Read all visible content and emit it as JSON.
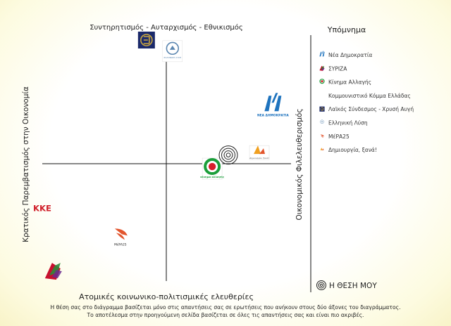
{
  "chart_data": {
    "type": "scatter",
    "title": "",
    "axes": {
      "top_label": "Συντηρητισμός - Αυταρχισμός - Εθνικισμός",
      "bottom_label": "Ατομικές κοινωνικο-πολιτισμικές ελευθερίες",
      "left_label": "Κρατικός Παρεμβατισμός στην Οικονομία",
      "right_label": "Οικονομικός Φιλελευθερισμός"
    },
    "xlim": [
      -1,
      1
    ],
    "ylim": [
      -1,
      1
    ],
    "grid": false,
    "legend_position": "right",
    "legend_title": "Υπόμνημα",
    "points": [
      {
        "name": "Νέα Δημοκρατία",
        "x": 0.86,
        "y": 0.47,
        "logo": "nd",
        "logo_text": "ΝΕΑ ΔΗΜΟΚΡΑΤΙΑ"
      },
      {
        "name": "ΣΥΡΙΖΑ",
        "x": -0.91,
        "y": -0.87,
        "logo": "syriza",
        "logo_text": ""
      },
      {
        "name": "Κίνημα Αλλαγής",
        "x": 0.37,
        "y": -0.04,
        "logo": "kinal",
        "logo_text": "κίνημα αλλαγής"
      },
      {
        "name": "Κομμουνιστικό Κόμμα Ελλάδας",
        "x": -1.0,
        "y": -0.36,
        "logo": "kke",
        "logo_text": "ΚΚΕ"
      },
      {
        "name": "Λαϊκός Σύνδεσμος - Χρυσή Αυγή",
        "x": -0.16,
        "y": 1.0,
        "logo": "xa",
        "logo_text": ""
      },
      {
        "name": "Ελληνική Λύση",
        "x": 0.05,
        "y": 0.91,
        "logo": "el",
        "logo_text": "ΕΛΛΗΝΙΚΗ ΛΥΣΗ"
      },
      {
        "name": "ΜέΡΑ25",
        "x": -0.37,
        "y": -0.57,
        "logo": "mera",
        "logo_text": "ΜέΡΑ25"
      },
      {
        "name": "Δημιουργία, ξανά!",
        "x": 0.75,
        "y": 0.09,
        "logo": "dx",
        "logo_text": "Δημιουργία, ξανά!"
      }
    ],
    "my_position": {
      "label": "Η ΘΕΣΗ ΜΟΥ",
      "x": 0.5,
      "y": 0.07
    },
    "footnote": [
      "Η θέση σας στο διάγραμμα βασίζεται μόνο στις απαντήσεις σας σε ερωτήσεις που ανήκουν στους δύο άξονες του διαγράμματος.",
      "Το αποτέλεσμα στην προηγούμενη σελίδα βασίζεται σε όλες τις απαντήσεις σας και είναι πιο ακριβές."
    ]
  },
  "colors": {
    "axis": "#111111",
    "nd": "#1e73be",
    "syriza": "#c8102e",
    "kinal": "#1a9e3a",
    "kke": "#d0202a",
    "xa": "#1b2a6b",
    "el": "#5b86b0",
    "mera": "#e2552d",
    "dx": "#f0a020"
  }
}
